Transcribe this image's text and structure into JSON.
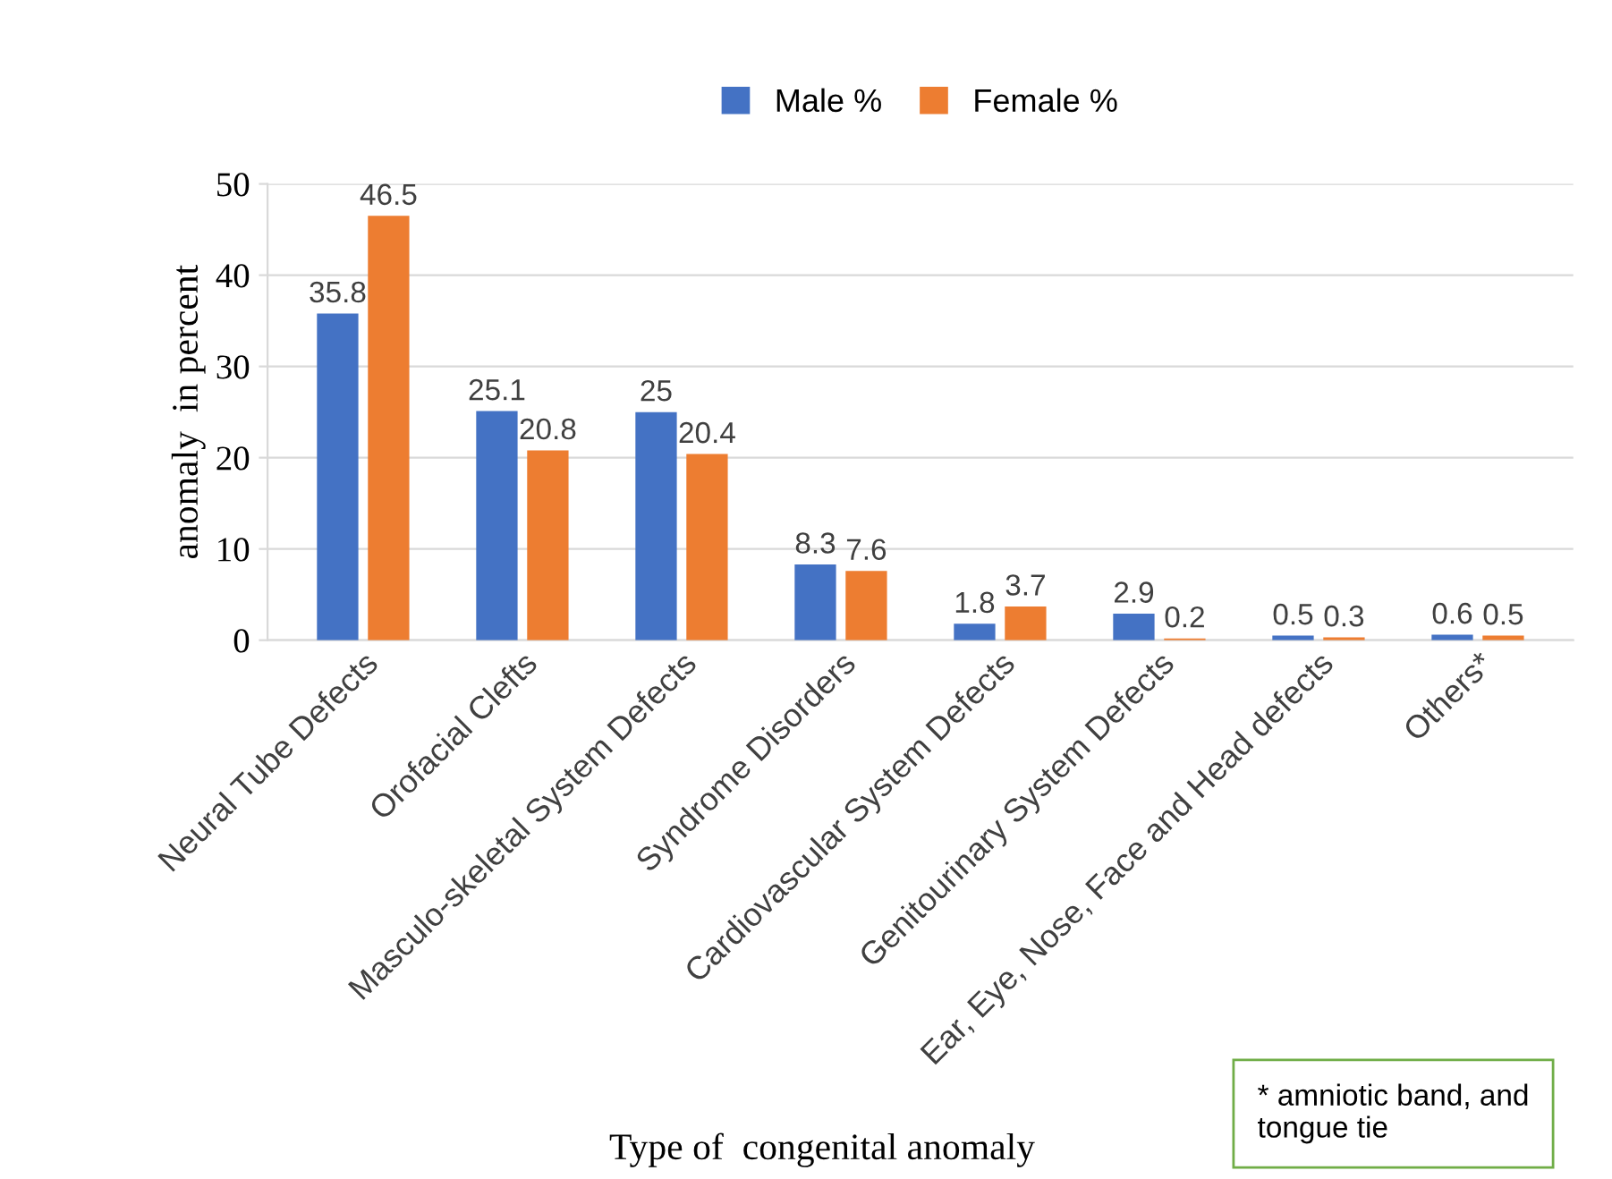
{
  "chart_data": {
    "type": "bar",
    "xlabel": "Type of  congenital anomaly",
    "ylabel": "anomaly  in percent",
    "categories": [
      "Neural Tube Defects",
      "Orofacial Clefts",
      "Masculo-skeletal System Defects",
      "Syndrome Disorders",
      "Cardiovascular System Defects",
      "Genitourinary System Defects",
      "Ear, Eye, Nose, Face and Head defects",
      "Others*"
    ],
    "series": [
      {
        "name": "Male %",
        "color": "#4472c4",
        "values": [
          35.8,
          25.1,
          25,
          8.3,
          1.8,
          2.9,
          0.5,
          0.6
        ]
      },
      {
        "name": "Female %",
        "color": "#ed7d31",
        "values": [
          46.5,
          20.8,
          20.4,
          7.6,
          3.7,
          0.2,
          0.3,
          0.5
        ]
      }
    ],
    "ylim": [
      0,
      50
    ],
    "yticks": [
      0,
      10,
      20,
      30,
      40,
      50
    ],
    "grid": "y",
    "legend": "top",
    "data_labels": true,
    "annotations": [
      "* amniotic band, and tongue tie"
    ]
  }
}
